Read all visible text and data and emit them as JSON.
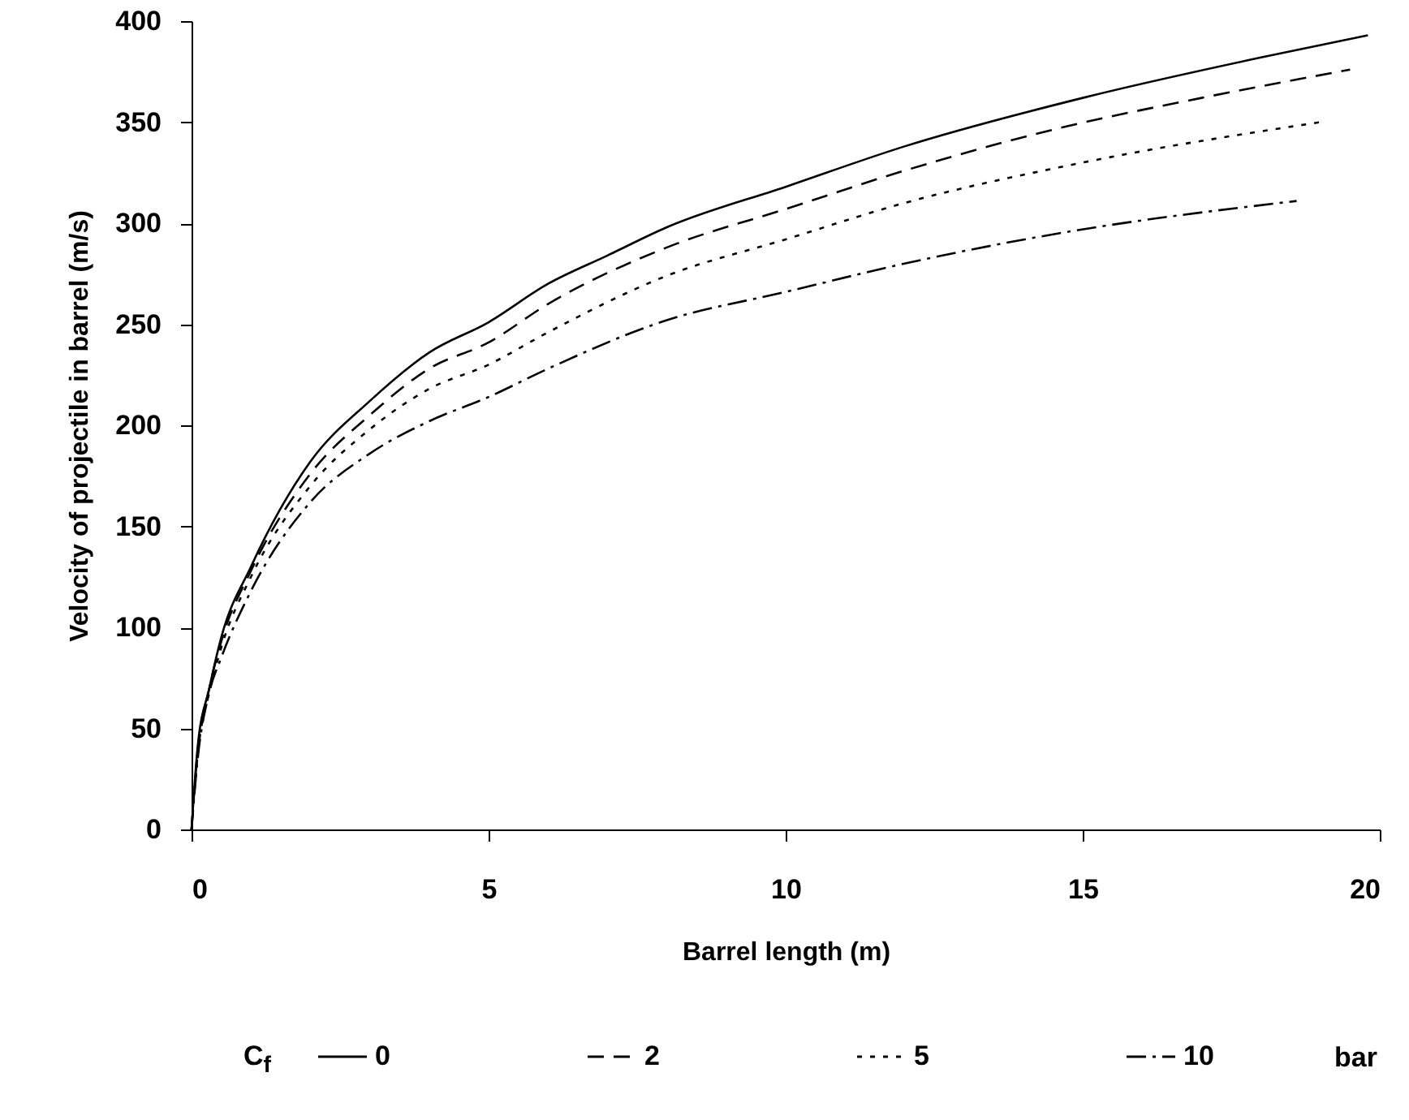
{
  "chart_data": {
    "type": "line",
    "xlabel": "Barrel length (m)",
    "ylabel": "Velocity of projectile in barrel (m/s)",
    "legend_title": "C$_{f}$",
    "annotations": [
      "bar"
    ],
    "legend": "bottom",
    "grid": false,
    "xlim": [
      0,
      20
    ],
    "xticks": [
      0,
      5,
      10,
      15,
      20
    ],
    "ylim": [
      0,
      400
    ],
    "yticks": [
      0,
      50,
      100,
      150,
      200,
      250,
      300,
      350,
      400
    ],
    "series": [
      {
        "name": "0",
        "color": "#000000",
        "line_style": "solid",
        "x": [
          0,
          0.1,
          0.3,
          0.5,
          1,
          2,
          3,
          4,
          5,
          6,
          7,
          8,
          10,
          12,
          15,
          18,
          19.8
        ],
        "values": [
          0,
          40,
          70,
          95,
          130,
          182,
          212,
          236,
          251,
          270,
          284,
          298,
          318,
          338,
          362,
          382,
          393
        ]
      },
      {
        "name": "2",
        "color": "#000000",
        "line_style": "dashed",
        "x": [
          0,
          0.1,
          0.3,
          0.5,
          1,
          2,
          3,
          4,
          5,
          6,
          8,
          10,
          12,
          14.6,
          17,
          19.5
        ],
        "values": [
          0,
          38,
          70,
          93,
          128,
          176,
          205,
          228,
          241,
          260,
          288,
          307,
          326,
          347,
          362,
          376
        ]
      },
      {
        "name": "5",
        "color": "#000000",
        "line_style": "dotted",
        "x": [
          0,
          0.1,
          0.3,
          0.5,
          1,
          2,
          3,
          4,
          5,
          6,
          8,
          10,
          12,
          15,
          19
        ],
        "values": [
          0,
          36,
          68,
          90,
          125,
          170,
          198,
          218,
          230,
          246,
          274,
          292,
          310,
          330,
          350
        ]
      },
      {
        "name": "10",
        "color": "#000000",
        "line_style": "dashdot",
        "x": [
          0,
          0.1,
          0.3,
          0.5,
          1,
          2,
          3,
          4,
          5,
          6,
          8,
          10,
          12,
          14.6,
          18.6
        ],
        "values": [
          0,
          34,
          68,
          85,
          118,
          162,
          186,
          202,
          214,
          228,
          252,
          266,
          280,
          295,
          311
        ]
      }
    ]
  }
}
